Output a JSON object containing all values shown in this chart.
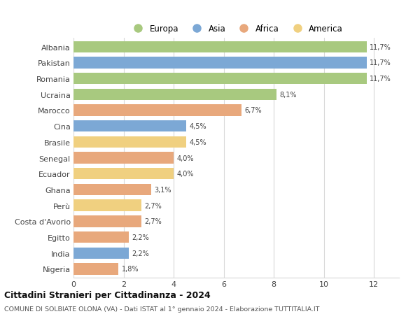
{
  "countries": [
    "Albania",
    "Pakistan",
    "Romania",
    "Ucraina",
    "Marocco",
    "Cina",
    "Brasile",
    "Senegal",
    "Ecuador",
    "Ghana",
    "Perù",
    "Costa d'Avorio",
    "Egitto",
    "India",
    "Nigeria"
  ],
  "values": [
    11.7,
    11.7,
    11.7,
    8.1,
    6.7,
    4.5,
    4.5,
    4.0,
    4.0,
    3.1,
    2.7,
    2.7,
    2.2,
    2.2,
    1.8
  ],
  "labels": [
    "11,7%",
    "11,7%",
    "11,7%",
    "8,1%",
    "6,7%",
    "4,5%",
    "4,5%",
    "4,0%",
    "4,0%",
    "3,1%",
    "2,7%",
    "2,7%",
    "2,2%",
    "2,2%",
    "1,8%"
  ],
  "continents": [
    "Europa",
    "Asia",
    "Europa",
    "Europa",
    "Africa",
    "Asia",
    "America",
    "Africa",
    "America",
    "Africa",
    "America",
    "Africa",
    "Africa",
    "Asia",
    "Africa"
  ],
  "colors": {
    "Europa": "#a8c97f",
    "Asia": "#7ca8d5",
    "Africa": "#e8a87c",
    "America": "#f0d080"
  },
  "legend_order": [
    "Europa",
    "Asia",
    "Africa",
    "America"
  ],
  "title": "Cittadini Stranieri per Cittadinanza - 2024",
  "subtitle": "COMUNE DI SOLBIATE OLONA (VA) - Dati ISTAT al 1° gennaio 2024 - Elaborazione TUTTITALIA.IT",
  "xlim": [
    0,
    13
  ],
  "xticks": [
    0,
    2,
    4,
    6,
    8,
    10,
    12
  ],
  "background_color": "#ffffff",
  "grid_color": "#d8d8d8",
  "bar_height": 0.72
}
